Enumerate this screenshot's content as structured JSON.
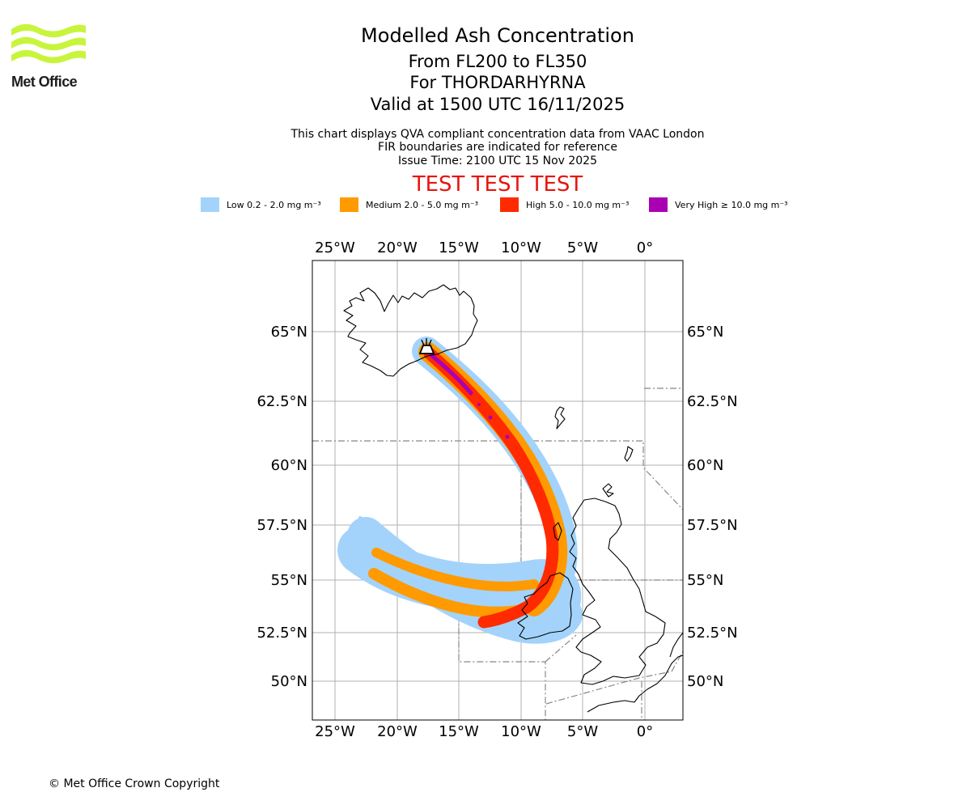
{
  "logo": {
    "text": "Met Office"
  },
  "header": {
    "title": "Modelled Ash Concentration",
    "level": "From FL200 to FL350",
    "volcano": "For THORDARHYRNA",
    "valid": "Valid at 1500 UTC 16/11/2025",
    "note1": "This chart displays QVA compliant concentration data from VAAC London",
    "note2": "FIR boundaries are indicated for reference",
    "issue": "Issue Time: 2100 UTC 15 Nov 2025",
    "test_banner": "TEST TEST TEST"
  },
  "legend": [
    {
      "label": "Low 0.2 - 2.0 mg m⁻³",
      "color": "#a3d3fa"
    },
    {
      "label": "Medium 2.0 - 5.0 mg m⁻³",
      "color": "#ff9a00"
    },
    {
      "label": "High 5.0 - 10.0 mg m⁻³",
      "color": "#ff2a00"
    },
    {
      "label": "Very High  ≥  10.0 mg m⁻³",
      "color": "#aa00b4"
    }
  ],
  "chart_data": {
    "type": "map",
    "extent": {
      "lon": [
        -26.8,
        3
      ],
      "lat": [
        48.5,
        67.8
      ]
    },
    "lon_ticks": [
      "25°W",
      "20°W",
      "15°W",
      "10°W",
      "5°W",
      "0°"
    ],
    "lat_ticks": [
      "65°N",
      "62.5°N",
      "60°N",
      "57.5°N",
      "55°N",
      "52.5°N",
      "50°N"
    ],
    "volcano_marker": {
      "lon": -17.4,
      "lat": 64.3
    }
  },
  "footer": {
    "copyright": "© Met Office Crown Copyright"
  }
}
